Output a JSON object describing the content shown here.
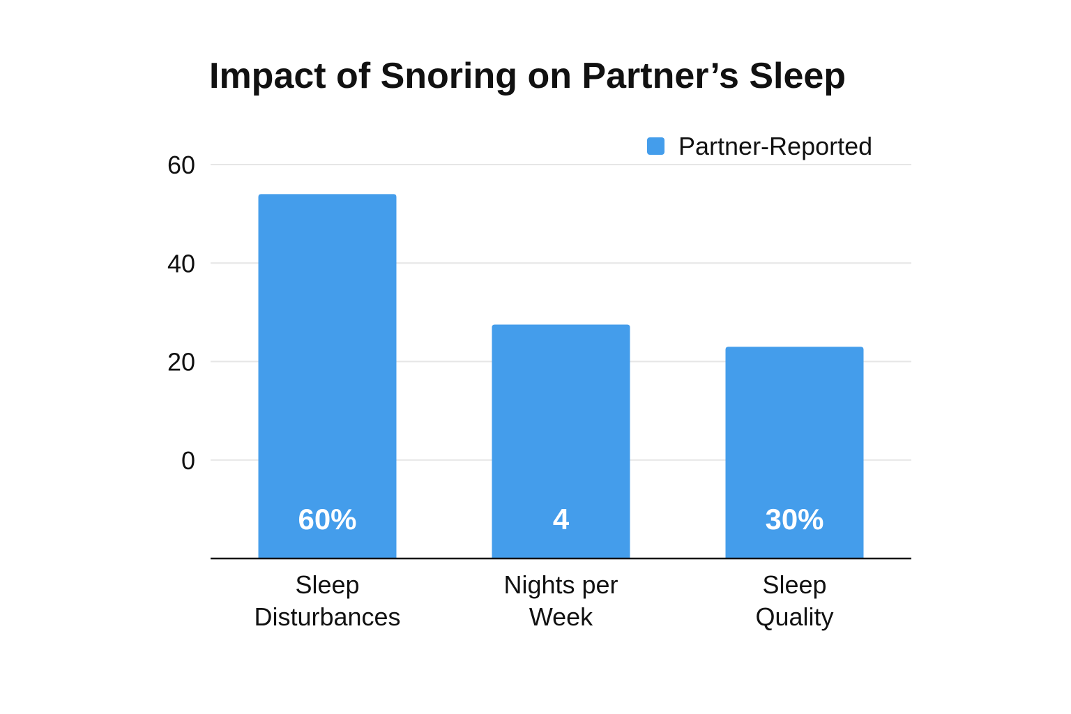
{
  "chart_data": {
    "type": "bar",
    "title": "Impact of Snoring on Partner’s Sleep",
    "xlabel": "",
    "ylabel": "",
    "categories": [
      "Sleep Disturbances",
      "Nights per Week",
      "Sleep Quality"
    ],
    "category_lines": [
      [
        "Sleep",
        "Disturbances"
      ],
      [
        "Nights per",
        "Week"
      ],
      [
        "Sleep",
        "Quality"
      ]
    ],
    "series": [
      {
        "name": "Partner-Reported",
        "values": [
          54,
          27.5,
          23
        ],
        "data_labels": [
          "60%",
          "4",
          "30%"
        ],
        "color": "#449DEB"
      }
    ],
    "yticks": [
      0,
      20,
      40,
      60
    ],
    "ylim": [
      -20,
      60
    ],
    "grid": true,
    "legend": "top-right",
    "colors": {
      "bar": "#449DEB",
      "grid": "#E6E6E6",
      "axis": "#111111",
      "bar_label": "#FFFFFF"
    }
  }
}
